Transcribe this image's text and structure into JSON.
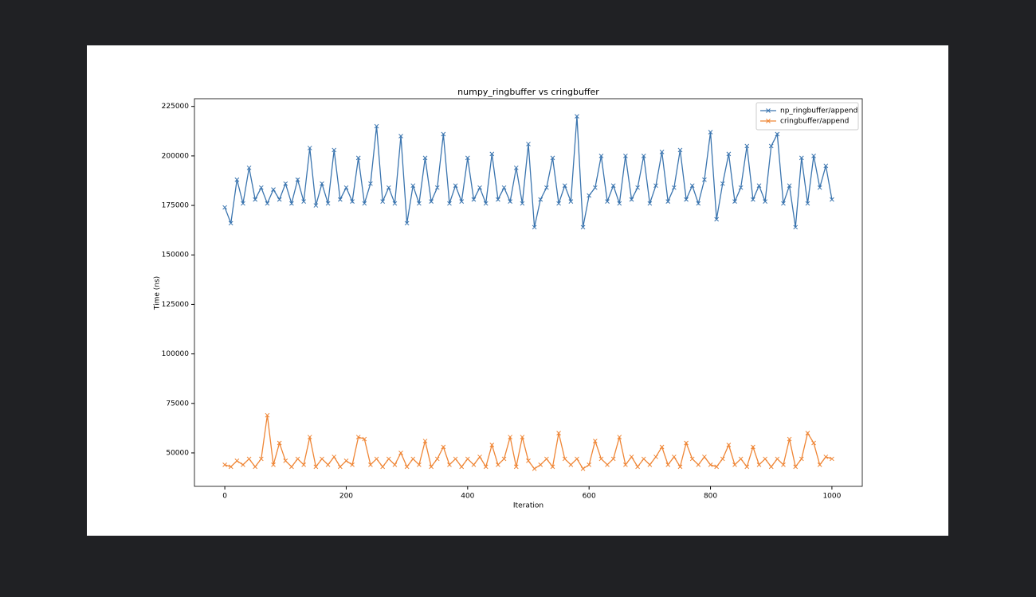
{
  "chart_data": {
    "type": "line",
    "title": "numpy_ringbuffer vs cringbuffer",
    "x_label": "Iteration",
    "y_label": "Time (ns)",
    "x": [
      0,
      10,
      20,
      30,
      40,
      50,
      60,
      70,
      80,
      90,
      100,
      110,
      120,
      130,
      140,
      150,
      160,
      170,
      180,
      190,
      200,
      210,
      220,
      230,
      240,
      250,
      260,
      270,
      280,
      290,
      300,
      310,
      320,
      330,
      340,
      350,
      360,
      370,
      380,
      390,
      400,
      410,
      420,
      430,
      440,
      450,
      460,
      470,
      480,
      490,
      500,
      510,
      520,
      530,
      540,
      550,
      560,
      570,
      580,
      590,
      600,
      610,
      620,
      630,
      640,
      650,
      660,
      670,
      680,
      690,
      700,
      710,
      720,
      730,
      740,
      750,
      760,
      770,
      780,
      790,
      800,
      810,
      820,
      830,
      840,
      850,
      860,
      870,
      880,
      890,
      900,
      910,
      920,
      930,
      940,
      950,
      960,
      970,
      980,
      990,
      1000
    ],
    "series": [
      {
        "name": "np_ringbuffer/append",
        "color": "#3b75af",
        "marker": "x",
        "values": [
          174000,
          166000,
          188000,
          176000,
          194000,
          178000,
          184000,
          176000,
          183000,
          178000,
          186000,
          176000,
          188000,
          177000,
          204000,
          175000,
          186000,
          176000,
          203000,
          178000,
          184000,
          177000,
          199000,
          176000,
          186000,
          215000,
          177000,
          184000,
          176000,
          210000,
          166000,
          185000,
          176000,
          199000,
          177000,
          184000,
          211000,
          176000,
          185000,
          177000,
          199000,
          178000,
          184000,
          176000,
          201000,
          178000,
          184000,
          177000,
          194000,
          176000,
          206000,
          164000,
          178000,
          184000,
          199000,
          176000,
          185000,
          177000,
          220000,
          164000,
          180000,
          184000,
          200000,
          177000,
          185000,
          176000,
          200000,
          178000,
          184000,
          200000,
          176000,
          185000,
          202000,
          177000,
          184000,
          203000,
          178000,
          185000,
          176000,
          188000,
          212000,
          168000,
          186000,
          201000,
          177000,
          184000,
          205000,
          178000,
          185000,
          177000,
          205000,
          211000,
          176000,
          185000,
          164000,
          199000,
          176000,
          200000,
          184000,
          195000,
          178000
        ]
      },
      {
        "name": "cringbuffer/append",
        "color": "#ef8636",
        "marker": "x",
        "values": [
          44000,
          43000,
          46000,
          44000,
          47000,
          43000,
          47000,
          69000,
          44000,
          55000,
          46000,
          43000,
          47000,
          44000,
          58000,
          43000,
          47000,
          44000,
          48000,
          43000,
          46000,
          44000,
          58000,
          57000,
          44000,
          47000,
          43000,
          47000,
          44000,
          50000,
          43000,
          47000,
          44000,
          56000,
          43000,
          47000,
          53000,
          44000,
          47000,
          43000,
          47000,
          44000,
          48000,
          43000,
          54000,
          44000,
          47000,
          58000,
          43000,
          58000,
          46000,
          42000,
          44000,
          47000,
          43000,
          60000,
          47000,
          44000,
          47000,
          42000,
          44000,
          56000,
          47000,
          44000,
          47000,
          58000,
          44000,
          48000,
          43000,
          47000,
          44000,
          48000,
          53000,
          44000,
          48000,
          43000,
          55000,
          47000,
          44000,
          48000,
          44000,
          43000,
          47000,
          54000,
          44000,
          47000,
          43000,
          53000,
          44000,
          47000,
          43000,
          47000,
          44000,
          57000,
          43000,
          47000,
          60000,
          55000,
          44000,
          48000,
          47000
        ]
      }
    ],
    "xlim": [
      -50,
      1050
    ],
    "ylim": [
      33100,
      228900
    ],
    "xticks": [
      0,
      200,
      400,
      600,
      800,
      1000
    ],
    "yticks": [
      50000,
      75000,
      100000,
      125000,
      150000,
      175000,
      200000,
      225000
    ],
    "legend": "upper right"
  }
}
